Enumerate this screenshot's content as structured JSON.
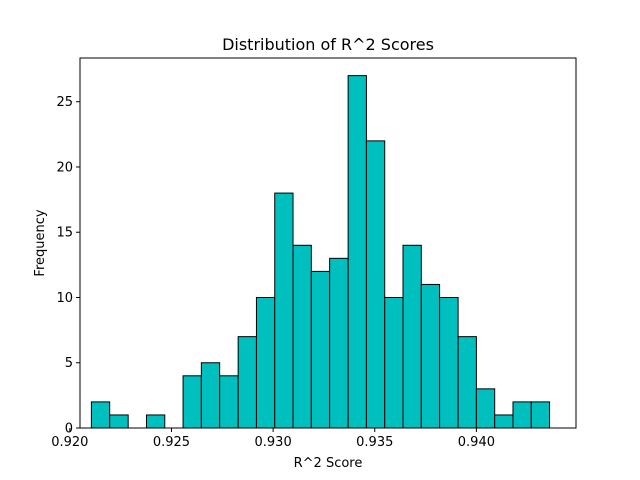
{
  "chart_data": {
    "type": "bar",
    "title": "Distribution of R^2 Scores",
    "xlabel": "R^2 Score",
    "ylabel": "Frequency",
    "xlim": [
      0.9205,
      0.9449
    ],
    "ylim": [
      0,
      28.35
    ],
    "bar_color": "#00bfbf",
    "edge_color": "#000000",
    "grid": false,
    "x_ticks": [
      {
        "value": 0.92,
        "label": "0.920"
      },
      {
        "value": 0.925,
        "label": "0.925"
      },
      {
        "value": 0.93,
        "label": "0.930"
      },
      {
        "value": 0.935,
        "label": "0.935"
      },
      {
        "value": 0.94,
        "label": "0.940"
      }
    ],
    "y_ticks": [
      {
        "value": 0,
        "label": "0"
      },
      {
        "value": 5,
        "label": "5"
      },
      {
        "value": 10,
        "label": "10"
      },
      {
        "value": 15,
        "label": "15"
      },
      {
        "value": 20,
        "label": "20"
      },
      {
        "value": 25,
        "label": "25"
      }
    ],
    "bin_edges": [
      0.92106,
      0.92196,
      0.92287,
      0.92377,
      0.92467,
      0.92557,
      0.92647,
      0.92737,
      0.92828,
      0.92918,
      0.93008,
      0.93098,
      0.93188,
      0.93278,
      0.93369,
      0.93459,
      0.93549,
      0.93639,
      0.93729,
      0.93819,
      0.9391,
      0.94,
      0.9409,
      0.9418,
      0.9427,
      0.9436
    ],
    "values": [
      2,
      1,
      0,
      1,
      0,
      4,
      5,
      4,
      7,
      10,
      18,
      14,
      12,
      13,
      27,
      22,
      10,
      14,
      11,
      10,
      7,
      3,
      1,
      2,
      2
    ]
  }
}
